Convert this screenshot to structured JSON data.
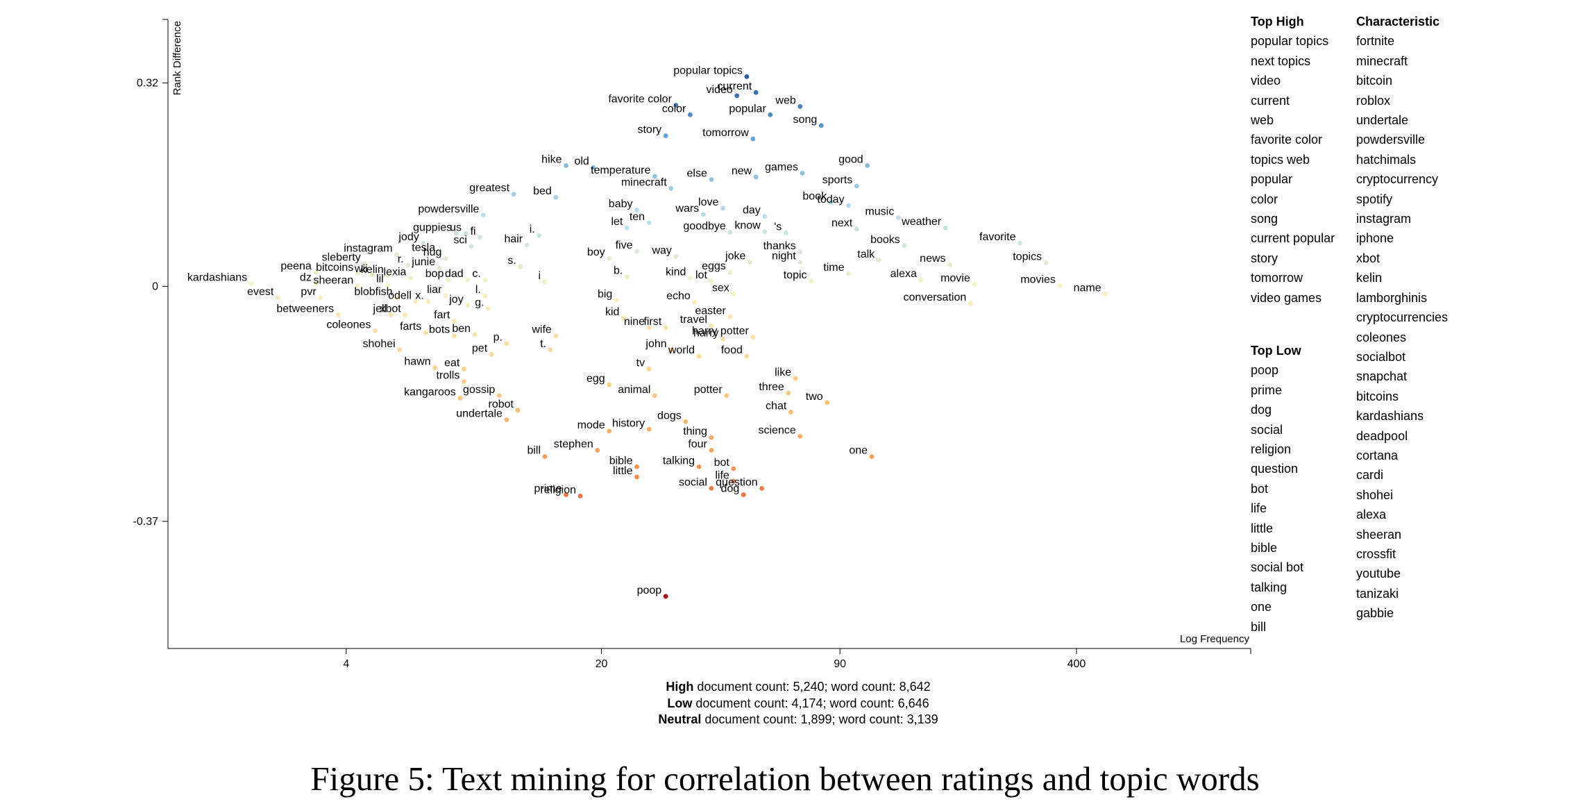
{
  "chart_data": {
    "type": "scatter",
    "xlabel": "Log Frequency",
    "ylabel": "Rank Difference",
    "x_scale": "log",
    "x_ticks": [
      4,
      20,
      90,
      400
    ],
    "y_ticks": [
      0.32,
      0,
      -0.37
    ],
    "xlim": [
      1.3,
      1200
    ],
    "ylim": [
      -0.57,
      0.42
    ],
    "grid": false,
    "legend": "none",
    "color_scale": {
      "high": "#2c5ca8",
      "mid": "#f7f3c6",
      "low": "#a50f15"
    },
    "labeled_points": [
      {
        "term": "popular topics",
        "x": 50,
        "y": 0.33
      },
      {
        "term": "video",
        "x": 47,
        "y": 0.3
      },
      {
        "term": "current",
        "x": 53,
        "y": 0.305
      },
      {
        "term": "web",
        "x": 70,
        "y": 0.283
      },
      {
        "term": "favorite color",
        "x": 32,
        "y": 0.285
      },
      {
        "term": "color",
        "x": 35,
        "y": 0.27
      },
      {
        "term": "popular",
        "x": 58,
        "y": 0.27
      },
      {
        "term": "song",
        "x": 80,
        "y": 0.253
      },
      {
        "term": "story",
        "x": 30,
        "y": 0.237
      },
      {
        "term": "tomorrow",
        "x": 52,
        "y": 0.232
      },
      {
        "term": "hike",
        "x": 16,
        "y": 0.19
      },
      {
        "term": "old",
        "x": 19,
        "y": 0.187
      },
      {
        "term": "temperature",
        "x": 28,
        "y": 0.173
      },
      {
        "term": "else",
        "x": 40,
        "y": 0.168
      },
      {
        "term": "new",
        "x": 53,
        "y": 0.172
      },
      {
        "term": "games",
        "x": 71,
        "y": 0.178
      },
      {
        "term": "good",
        "x": 107,
        "y": 0.19
      },
      {
        "term": "minecraft",
        "x": 31,
        "y": 0.154
      },
      {
        "term": "sports",
        "x": 100,
        "y": 0.158
      },
      {
        "term": "greatest",
        "x": 11.5,
        "y": 0.145
      },
      {
        "term": "bed",
        "x": 15,
        "y": 0.14
      },
      {
        "term": "book",
        "x": 85,
        "y": 0.132
      },
      {
        "term": "today",
        "x": 95,
        "y": 0.127
      },
      {
        "term": "baby",
        "x": 25,
        "y": 0.12
      },
      {
        "term": "love",
        "x": 43,
        "y": 0.123
      },
      {
        "term": "wars",
        "x": 38,
        "y": 0.113
      },
      {
        "term": "day",
        "x": 56,
        "y": 0.11
      },
      {
        "term": "powdersville",
        "x": 9.5,
        "y": 0.112
      },
      {
        "term": "music",
        "x": 130,
        "y": 0.108
      },
      {
        "term": "ten",
        "x": 27,
        "y": 0.1
      },
      {
        "term": "let",
        "x": 23.5,
        "y": 0.092
      },
      {
        "term": "goodbye",
        "x": 45,
        "y": 0.085
      },
      {
        "term": "know",
        "x": 56,
        "y": 0.086
      },
      {
        "term": "'s",
        "x": 64,
        "y": 0.084
      },
      {
        "term": "next",
        "x": 100,
        "y": 0.09
      },
      {
        "term": "weather",
        "x": 175,
        "y": 0.092
      },
      {
        "term": "us",
        "x": 8.5,
        "y": 0.083
      },
      {
        "term": "fi",
        "x": 9.3,
        "y": 0.077
      },
      {
        "term": "guppies",
        "x": 8.0,
        "y": 0.083
      },
      {
        "term": "i.",
        "x": 13.5,
        "y": 0.08
      },
      {
        "term": "jody",
        "x": 6.5,
        "y": 0.068
      },
      {
        "term": "sci",
        "x": 8.8,
        "y": 0.063
      },
      {
        "term": "hair",
        "x": 12.5,
        "y": 0.065
      },
      {
        "term": "favorite",
        "x": 280,
        "y": 0.068
      },
      {
        "term": "books",
        "x": 135,
        "y": 0.064
      },
      {
        "term": "five",
        "x": 25,
        "y": 0.055
      },
      {
        "term": "thanks",
        "x": 70,
        "y": 0.054
      },
      {
        "term": "instagram",
        "x": 5.5,
        "y": 0.05
      },
      {
        "term": "tesla",
        "x": 7.2,
        "y": 0.051
      },
      {
        "term": "hug",
        "x": 7.5,
        "y": 0.044
      },
      {
        "term": "way",
        "x": 32,
        "y": 0.047
      },
      {
        "term": "boy",
        "x": 21,
        "y": 0.044
      },
      {
        "term": "joke",
        "x": 51,
        "y": 0.038
      },
      {
        "term": "night",
        "x": 70,
        "y": 0.038
      },
      {
        "term": "talk",
        "x": 115,
        "y": 0.041
      },
      {
        "term": "topics",
        "x": 330,
        "y": 0.037
      },
      {
        "term": "news",
        "x": 180,
        "y": 0.034
      },
      {
        "term": "sleberty",
        "x": 4.5,
        "y": 0.036
      },
      {
        "term": "r.",
        "x": 5.9,
        "y": 0.033
      },
      {
        "term": "junie",
        "x": 7.2,
        "y": 0.029
      },
      {
        "term": "s.",
        "x": 12,
        "y": 0.031
      },
      {
        "term": "eggs",
        "x": 45,
        "y": 0.022
      },
      {
        "term": "time",
        "x": 95,
        "y": 0.02
      },
      {
        "term": "peena",
        "x": 3.3,
        "y": 0.022
      },
      {
        "term": "bitcoins",
        "x": 4.3,
        "y": 0.02
      },
      {
        "term": "wii",
        "x": 4.7,
        "y": 0.018
      },
      {
        "term": "kelin",
        "x": 5.2,
        "y": 0.017
      },
      {
        "term": "b.",
        "x": 23.5,
        "y": 0.015
      },
      {
        "term": "kind",
        "x": 35,
        "y": 0.013
      },
      {
        "term": "lot",
        "x": 40,
        "y": 0.008
      },
      {
        "term": "topic",
        "x": 75,
        "y": 0.008
      },
      {
        "term": "alexa",
        "x": 150,
        "y": 0.01
      },
      {
        "term": "movie",
        "x": 210,
        "y": 0.003
      },
      {
        "term": "movies",
        "x": 360,
        "y": 0.001
      },
      {
        "term": "kardashians",
        "x": 2.2,
        "y": 0.004
      },
      {
        "term": "dz",
        "x": 3.3,
        "y": 0.004
      },
      {
        "term": "sheeran",
        "x": 4.3,
        "y": 0.0
      },
      {
        "term": "lil",
        "x": 5.2,
        "y": 0.002
      },
      {
        "term": "lexia",
        "x": 6.0,
        "y": 0.013
      },
      {
        "term": "bop",
        "x": 7.6,
        "y": 0.01
      },
      {
        "term": "dad",
        "x": 8.6,
        "y": 0.01
      },
      {
        "term": "c.",
        "x": 9.6,
        "y": 0.01
      },
      {
        "term": "i",
        "x": 14,
        "y": 0.007
      },
      {
        "term": "name",
        "x": 480,
        "y": -0.012
      },
      {
        "term": "evest",
        "x": 2.6,
        "y": -0.018
      },
      {
        "term": "pvr",
        "x": 3.4,
        "y": -0.018
      },
      {
        "term": "blobfish",
        "x": 5.5,
        "y": -0.018
      },
      {
        "term": "liar",
        "x": 7.5,
        "y": -0.015
      },
      {
        "term": "l.",
        "x": 9.6,
        "y": -0.015
      },
      {
        "term": "sex",
        "x": 46,
        "y": -0.012
      },
      {
        "term": "x.",
        "x": 6.7,
        "y": -0.024
      },
      {
        "term": "odell",
        "x": 6.2,
        "y": -0.024
      },
      {
        "term": "big",
        "x": 22,
        "y": -0.022
      },
      {
        "term": "echo",
        "x": 36,
        "y": -0.025
      },
      {
        "term": "conversation",
        "x": 205,
        "y": -0.027
      },
      {
        "term": "joy",
        "x": 8.6,
        "y": -0.03
      },
      {
        "term": "g.",
        "x": 9.8,
        "y": -0.035
      },
      {
        "term": "betweeners",
        "x": 3.8,
        "y": -0.045
      },
      {
        "term": "jell",
        "x": 5.3,
        "y": -0.045
      },
      {
        "term": "xbot",
        "x": 5.8,
        "y": -0.045
      },
      {
        "term": "fart",
        "x": 7.9,
        "y": -0.055
      },
      {
        "term": "kid",
        "x": 23,
        "y": -0.05
      },
      {
        "term": "easter",
        "x": 45,
        "y": -0.048
      },
      {
        "term": "nine",
        "x": 27,
        "y": -0.065
      },
      {
        "term": "first",
        "x": 30,
        "y": -0.065
      },
      {
        "term": "travel",
        "x": 40,
        "y": -0.062
      },
      {
        "term": "coleones",
        "x": 4.8,
        "y": -0.07
      },
      {
        "term": "farts",
        "x": 6.6,
        "y": -0.073
      },
      {
        "term": "bots",
        "x": 7.9,
        "y": -0.078
      },
      {
        "term": "ben",
        "x": 9.0,
        "y": -0.076
      },
      {
        "term": "wife",
        "x": 15,
        "y": -0.078
      },
      {
        "term": "harry",
        "x": 43,
        "y": -0.083
      },
      {
        "term": "harry potter",
        "x": 52,
        "y": -0.08
      },
      {
        "term": "p.",
        "x": 11,
        "y": -0.09
      },
      {
        "term": "shohei",
        "x": 5.6,
        "y": -0.1
      },
      {
        "term": "t.",
        "x": 14.5,
        "y": -0.1
      },
      {
        "term": "john",
        "x": 31,
        "y": -0.1
      },
      {
        "term": "pet",
        "x": 10,
        "y": -0.107
      },
      {
        "term": "world",
        "x": 37,
        "y": -0.11
      },
      {
        "term": "food",
        "x": 50,
        "y": -0.11
      },
      {
        "term": "hawn",
        "x": 7.0,
        "y": -0.128
      },
      {
        "term": "eat",
        "x": 8.4,
        "y": -0.13
      },
      {
        "term": "tv",
        "x": 27,
        "y": -0.13
      },
      {
        "term": "like",
        "x": 68,
        "y": -0.145
      },
      {
        "term": "trolls",
        "x": 8.4,
        "y": -0.15
      },
      {
        "term": "egg",
        "x": 21,
        "y": -0.155
      },
      {
        "term": "three",
        "x": 65,
        "y": -0.168
      },
      {
        "term": "gossip",
        "x": 10.5,
        "y": -0.172
      },
      {
        "term": "animal",
        "x": 28,
        "y": -0.172
      },
      {
        "term": "potter",
        "x": 44,
        "y": -0.172
      },
      {
        "term": "kangaroos",
        "x": 8.2,
        "y": -0.176
      },
      {
        "term": "two",
        "x": 83,
        "y": -0.183
      },
      {
        "term": "robot",
        "x": 11.8,
        "y": -0.195
      },
      {
        "term": "chat",
        "x": 66,
        "y": -0.198
      },
      {
        "term": "undertale",
        "x": 11,
        "y": -0.21
      },
      {
        "term": "dogs",
        "x": 34,
        "y": -0.213
      },
      {
        "term": "mode",
        "x": 21,
        "y": -0.228
      },
      {
        "term": "history",
        "x": 27,
        "y": -0.225
      },
      {
        "term": "thing",
        "x": 40,
        "y": -0.238
      },
      {
        "term": "science",
        "x": 70,
        "y": -0.236
      },
      {
        "term": "stephen",
        "x": 19.5,
        "y": -0.258
      },
      {
        "term": "bill",
        "x": 14,
        "y": -0.268
      },
      {
        "term": "one",
        "x": 110,
        "y": -0.268
      },
      {
        "term": "four",
        "x": 40,
        "y": -0.258
      },
      {
        "term": "bible",
        "x": 25,
        "y": -0.284
      },
      {
        "term": "talking",
        "x": 37,
        "y": -0.284
      },
      {
        "term": "bot",
        "x": 46,
        "y": -0.287
      },
      {
        "term": "little",
        "x": 25,
        "y": -0.3
      },
      {
        "term": "life",
        "x": 46,
        "y": -0.307
      },
      {
        "term": "social",
        "x": 40,
        "y": -0.318
      },
      {
        "term": "question",
        "x": 55,
        "y": -0.318
      },
      {
        "term": "dog",
        "x": 49,
        "y": -0.328
      },
      {
        "term": "prime",
        "x": 16,
        "y": -0.328
      },
      {
        "term": "religion",
        "x": 17.5,
        "y": -0.33
      },
      {
        "term": "poop",
        "x": 30,
        "y": -0.488
      }
    ]
  },
  "labels": {
    "x_axis_title": "Log Frequency",
    "y_axis_title": "Rank Difference",
    "x_ticks": [
      "4",
      "20",
      "90",
      "400"
    ],
    "y_ticks": [
      "0.32",
      "0",
      "-0.37"
    ]
  },
  "top_high": {
    "header": "Top High",
    "items": [
      "popular topics",
      "next topics",
      "video",
      "current",
      "web",
      "favorite color",
      "topics web",
      "popular",
      "color",
      "song",
      "current popular",
      "story",
      "tomorrow",
      "video games"
    ]
  },
  "top_low": {
    "header": "Top Low",
    "items": [
      "poop",
      "prime",
      "dog",
      "social",
      "religion",
      "question",
      "bot",
      "life",
      "little",
      "bible",
      "social bot",
      "talking",
      "one",
      "bill"
    ]
  },
  "characteristic": {
    "header": "Characteristic",
    "items": [
      "fortnite",
      "minecraft",
      "bitcoin",
      "roblox",
      "undertale",
      "powdersville",
      "hatchimals",
      "cryptocurrency",
      "spotify",
      "instagram",
      "iphone",
      "xbot",
      "kelin",
      "lamborghinis",
      "cryptocurrencies",
      "coleones",
      "socialbot",
      "snapchat",
      "bitcoins",
      "kardashians",
      "deadpool",
      "cortana",
      "cardi",
      "shohei",
      "alexa",
      "sheeran",
      "crossfit",
      "youtube",
      "tanizaki",
      "gabbie"
    ]
  },
  "counts": [
    {
      "label": "High",
      "text": "document count: 5,240; word count: 8,642"
    },
    {
      "label": "Low",
      "text": "document count: 4,174; word count: 6,646"
    },
    {
      "label": "Neutral",
      "text": "document count: 1,899; word count: 3,139"
    }
  ],
  "caption": "Figure 5: Text mining for correlation between ratings and topic words"
}
